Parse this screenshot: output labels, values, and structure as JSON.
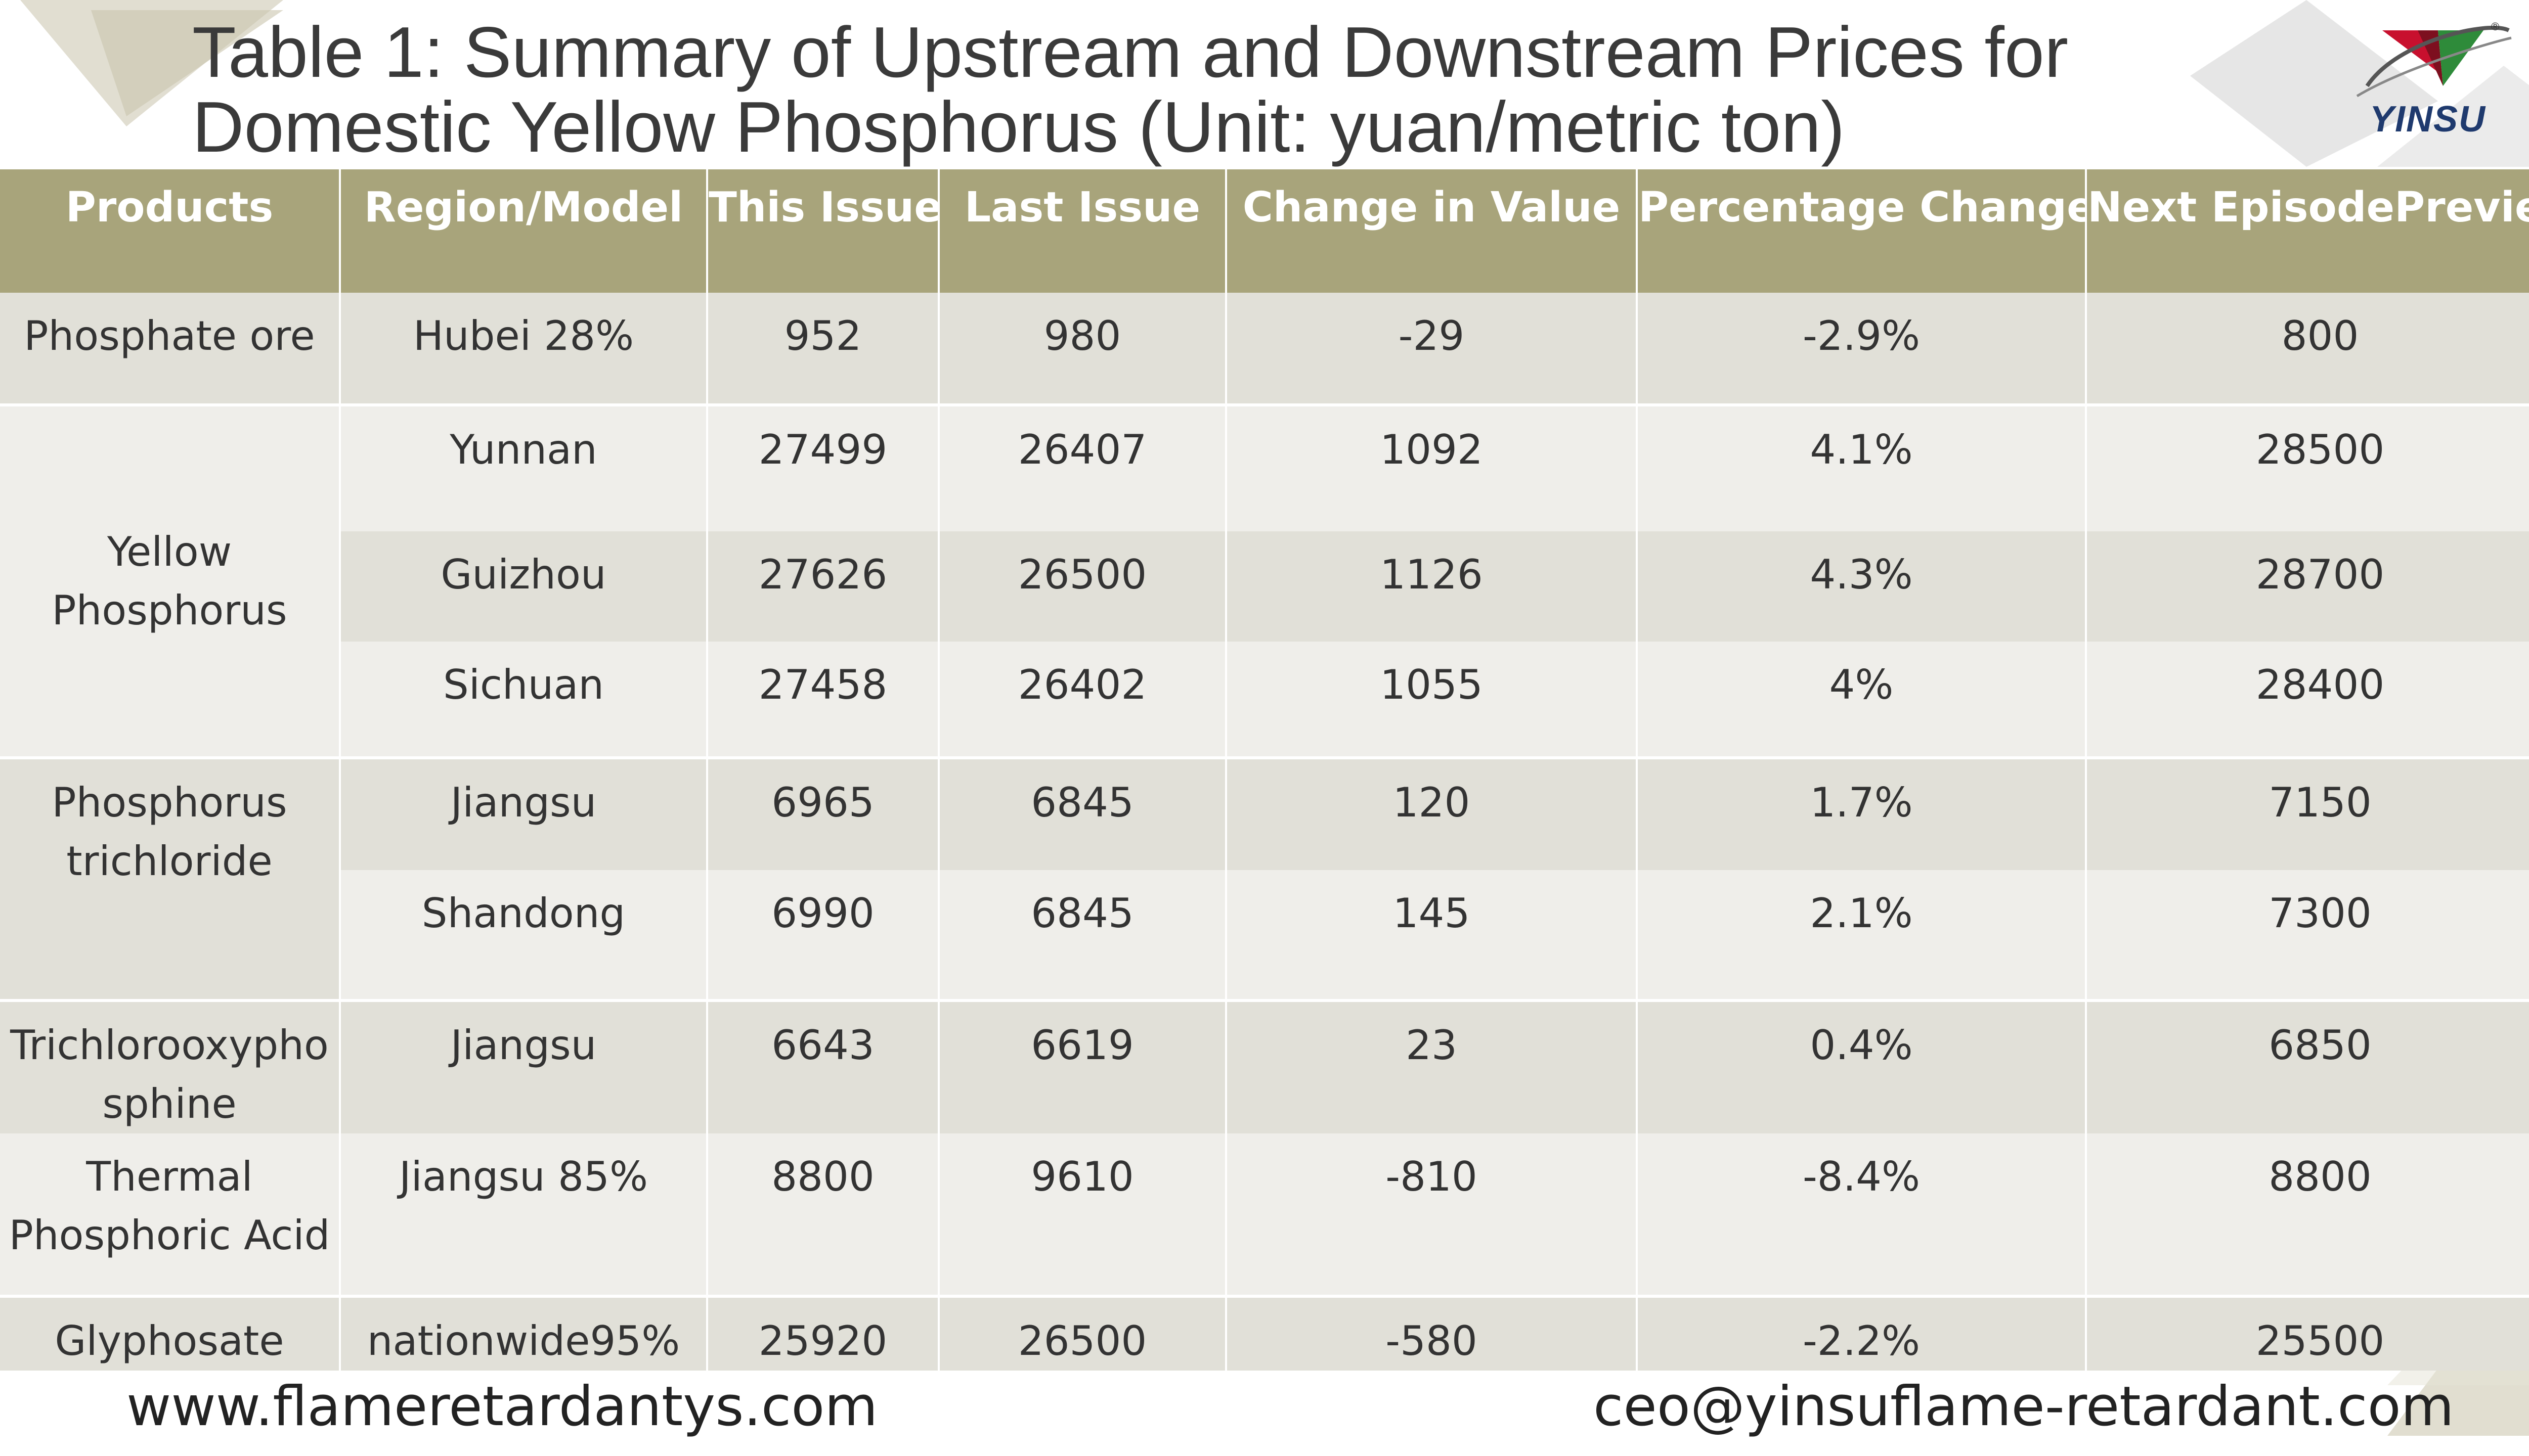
{
  "title": "Table 1: Summary of Upstream and Downstream Prices for Domestic Yellow Phosphorus (Unit: yuan/metric ton)",
  "logo": {
    "text": "YINSU",
    "mark": "®"
  },
  "colors": {
    "header": "#a8a47b",
    "row_dark": "#e1e0d8",
    "row_light": "#efeeea"
  },
  "table": {
    "headers": [
      "Products",
      "Region/Model",
      "This Issue",
      "Last Issue",
      "Change in Value",
      "Percentage Change",
      "Next EpisodePreview"
    ],
    "rows": [
      {
        "product": "Phosphate ore",
        "region": "Hubei 28%",
        "this": "952",
        "last": "980",
        "change": "-29",
        "pct": "-2.9%",
        "next": "800"
      },
      {
        "product": "Yellow Phosphorus",
        "region": "Yunnan",
        "this": "27499",
        "last": "26407",
        "change": "1092",
        "pct": "4.1%",
        "next": "28500"
      },
      {
        "region": "Guizhou",
        "this": "27626",
        "last": "26500",
        "change": "1126",
        "pct": "4.3%",
        "next": "28700"
      },
      {
        "region": "Sichuan",
        "this": "27458",
        "last": "26402",
        "change": "1055",
        "pct": "4%",
        "next": "28400"
      },
      {
        "product": "Phosphorus trichloride",
        "region": "Jiangsu",
        "this": "6965",
        "last": "6845",
        "change": "120",
        "pct": "1.7%",
        "next": "7150"
      },
      {
        "region": "Shandong",
        "this": "6990",
        "last": "6845",
        "change": "145",
        "pct": "2.1%",
        "next": "7300"
      },
      {
        "product": "Trichlorooxyphosphine",
        "region": "Jiangsu",
        "this": "6643",
        "last": "6619",
        "change": "23",
        "pct": "0.4%",
        "next": "6850"
      },
      {
        "product": "Thermal Phosphoric Acid",
        "region": "Jiangsu 85%",
        "this": "8800",
        "last": "9610",
        "change": "-810",
        "pct": "-8.4%",
        "next": "8800"
      },
      {
        "product": "Glyphosate",
        "region": "nationwide95%",
        "this": "25920",
        "last": "26500",
        "change": "-580",
        "pct": "-2.2%",
        "next": "25500"
      }
    ]
  },
  "footer": {
    "website": "www.flameretardantys.com",
    "email": "ceo@yinsuflame-retardant.com"
  }
}
